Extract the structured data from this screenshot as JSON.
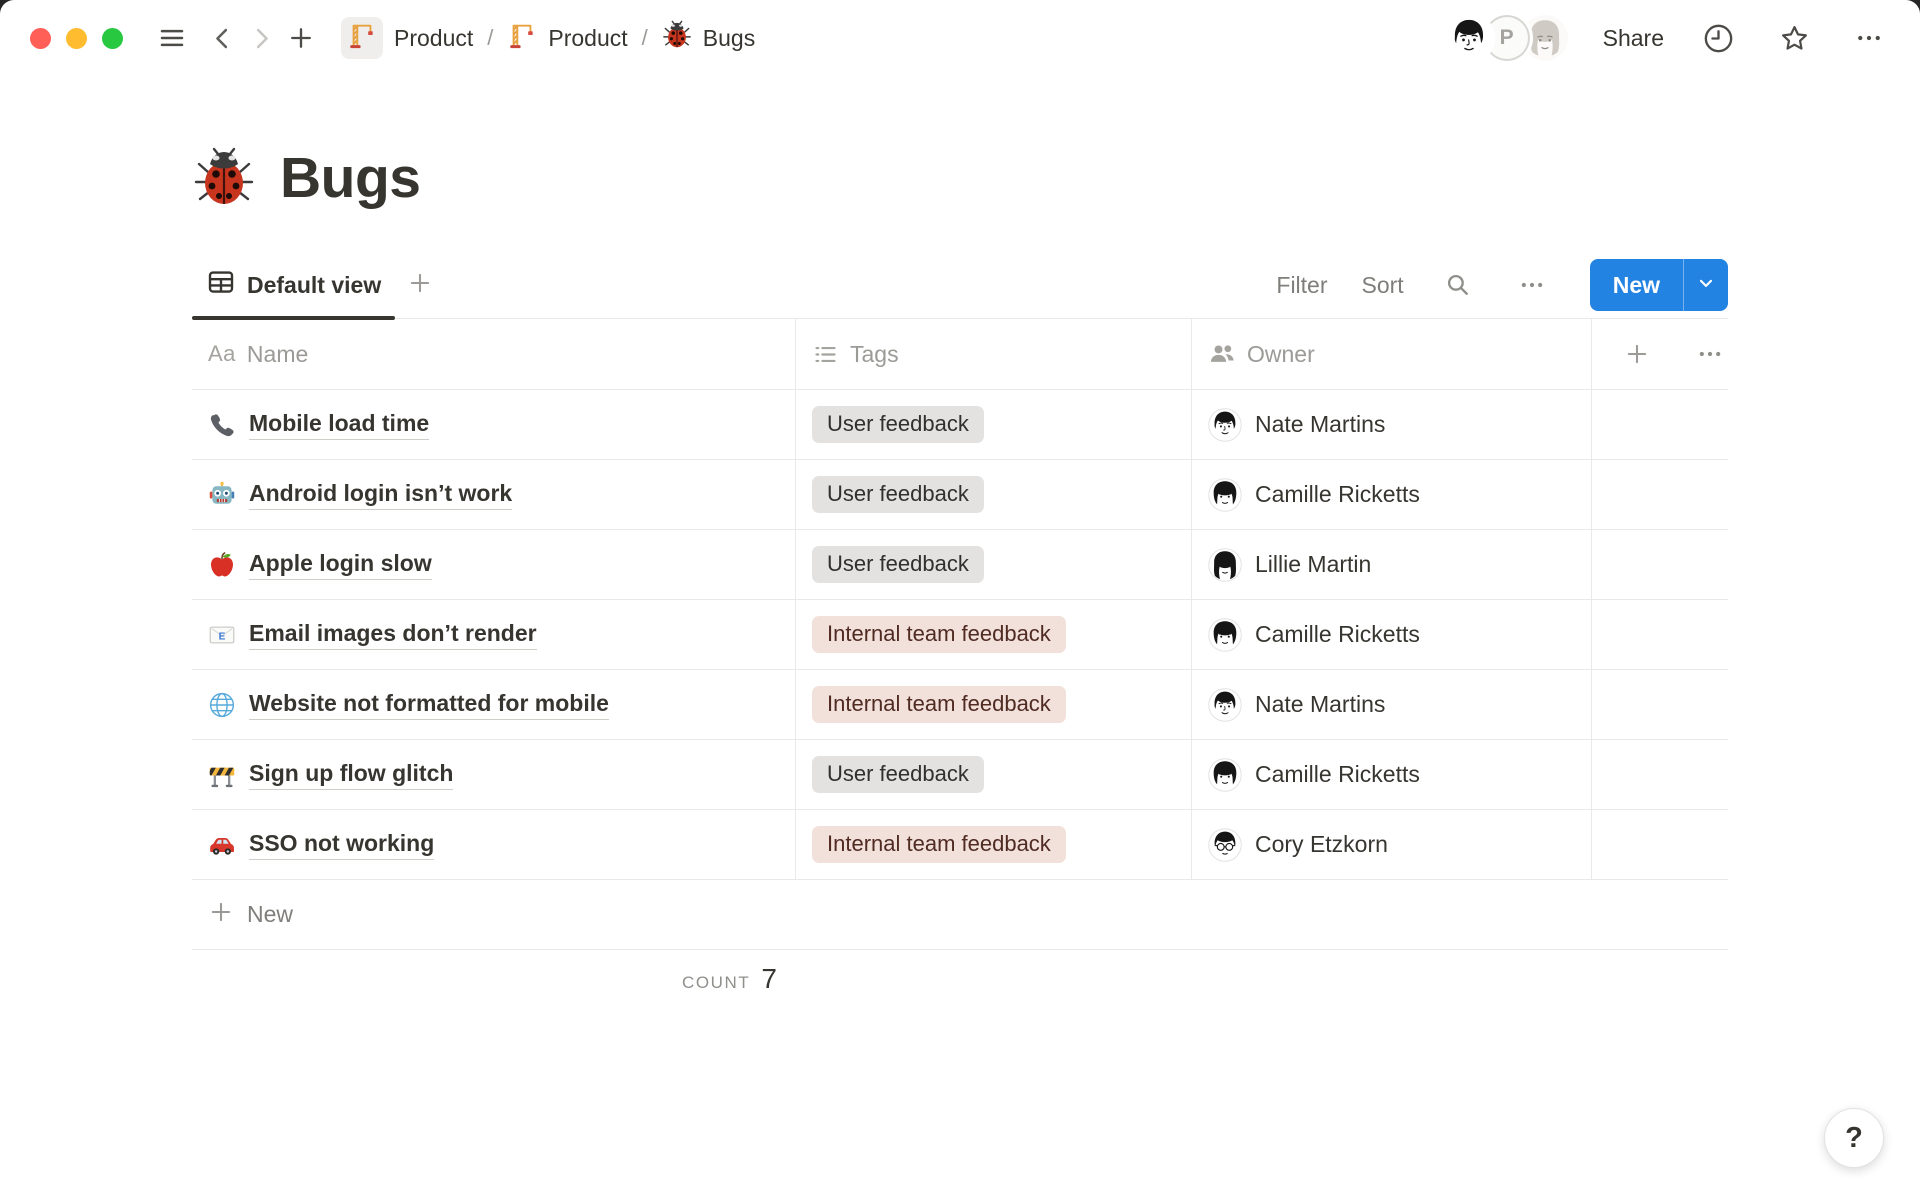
{
  "topbar": {
    "window_controls": [
      "close",
      "minimize",
      "zoom"
    ],
    "breadcrumb": {
      "separator": "/",
      "items": [
        {
          "icon": "crane",
          "label": "Product",
          "highlighted": true
        },
        {
          "icon": "crane",
          "label": "Product",
          "highlighted": false
        },
        {
          "icon": "ladybug",
          "label": "Bugs",
          "highlighted": false
        }
      ]
    },
    "avatars": [
      {
        "kind": "illustration",
        "icon": "avatar-man"
      },
      {
        "kind": "letter",
        "label": "P"
      },
      {
        "kind": "illustration",
        "icon": "avatar-woman"
      }
    ],
    "share_label": "Share",
    "icons": [
      "clock-icon",
      "star-icon",
      "more-icon"
    ]
  },
  "page": {
    "emoji": "ladybug-large",
    "title": "Bugs"
  },
  "view_bar": {
    "active_view": {
      "icon": "table",
      "label": "Default view"
    },
    "add_view_icon": "plus",
    "filter_label": "Filter",
    "sort_label": "Sort",
    "icons": [
      "search-icon",
      "more-icon"
    ],
    "new_button": {
      "label": "New",
      "color": "#2383E2",
      "chevron": "chevron-down"
    }
  },
  "table": {
    "columns": [
      {
        "icon_label": "Aa",
        "icon": "text",
        "label": "Name"
      },
      {
        "icon": "list",
        "label": "Tags"
      },
      {
        "icon": "people",
        "label": "Owner"
      }
    ],
    "header_actions": {
      "add_column_icon": "plus",
      "more_icon": "ellipsis"
    },
    "rows": [
      {
        "icon": "telephone",
        "name": "Mobile load time",
        "tag": {
          "label": "User feedback",
          "color": "gray"
        },
        "owner": {
          "avatar": "nate",
          "name": "Nate Martins"
        }
      },
      {
        "icon": "robot",
        "name": "Android login isn’t work",
        "tag": {
          "label": "User feedback",
          "color": "gray"
        },
        "owner": {
          "avatar": "camille",
          "name": "Camille Ricketts"
        }
      },
      {
        "icon": "apple",
        "name": "Apple login slow",
        "tag": {
          "label": "User feedback",
          "color": "gray"
        },
        "owner": {
          "avatar": "lillie",
          "name": "Lillie Martin"
        }
      },
      {
        "icon": "email",
        "name": "Email images don’t render",
        "tag": {
          "label": "Internal team feedback",
          "color": "red"
        },
        "owner": {
          "avatar": "camille",
          "name": "Camille Ricketts"
        }
      },
      {
        "icon": "globe",
        "name": "Website not formatted for mobile",
        "tag": {
          "label": "Internal team feedback",
          "color": "red"
        },
        "owner": {
          "avatar": "nate",
          "name": "Nate Martins"
        }
      },
      {
        "icon": "construction",
        "name": "Sign up flow glitch",
        "tag": {
          "label": "User feedback",
          "color": "gray"
        },
        "owner": {
          "avatar": "camille",
          "name": "Camille Ricketts"
        }
      },
      {
        "icon": "car",
        "name": "SSO not working",
        "tag": {
          "label": "Internal team feedback",
          "color": "red"
        },
        "owner": {
          "avatar": "cory",
          "name": "Cory Etzkorn"
        }
      }
    ],
    "new_row_label": "New",
    "footer": {
      "count_label": "COUNT",
      "count_value": "7"
    }
  },
  "help": {
    "label": "?"
  },
  "colors": {
    "accent_blue": "#2383E2",
    "text": "#37352F",
    "muted": "#7F7E7A",
    "divider": "#E9E9E7",
    "tag_gray_bg": "#E3E2E0",
    "tag_red_bg": "#F2E0DB",
    "tag_red_text": "#4F2B22"
  }
}
